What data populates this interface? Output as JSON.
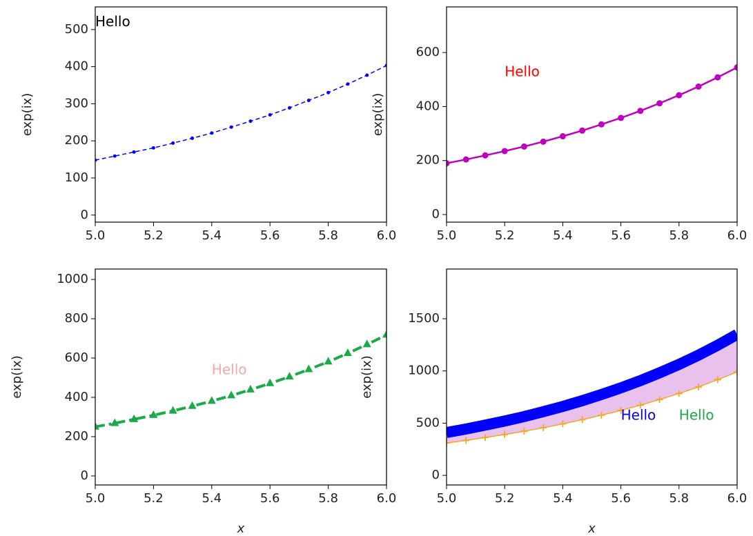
{
  "chart_data": [
    {
      "type": "line",
      "xlim": [
        5,
        6
      ],
      "ylim": [
        -19,
        561
      ],
      "xticks": [
        {
          "value": 5,
          "label": "5.0"
        },
        5.2,
        5.4,
        5.6,
        5.8,
        {
          "value": 6,
          "label": "6.0"
        }
      ],
      "yticks": [
        0,
        100,
        200,
        300,
        400,
        500
      ],
      "ylabel": "exp(ix)",
      "x": [
        5,
        5.067,
        5.133,
        5.2,
        5.267,
        5.333,
        5.4,
        5.467,
        5.533,
        5.6,
        5.667,
        5.733,
        5.8,
        5.867,
        5.933,
        6
      ],
      "series": [
        {
          "color": "#0000ff",
          "linestyle": "dashed",
          "marker": "dot",
          "linewidth": 1.5,
          "values": [
            148,
            159,
            170,
            181,
            194,
            207,
            221,
            237,
            253,
            270,
            289,
            309,
            330,
            353,
            377,
            403
          ]
        }
      ],
      "annotations": [
        {
          "text": "Hello",
          "x": 5,
          "y": 519,
          "color": "#000000"
        }
      ]
    },
    {
      "type": "line",
      "xlim": [
        5,
        6
      ],
      "ylim": [
        -28,
        769
      ],
      "xticks": [
        {
          "value": 5,
          "label": "5.0"
        },
        5.2,
        5.4,
        5.6,
        5.8,
        {
          "value": 6,
          "label": "6.0"
        }
      ],
      "yticks": [
        0,
        200,
        400,
        600
      ],
      "ylabel": "exp(ix)",
      "x": [
        5,
        5.067,
        5.133,
        5.2,
        5.267,
        5.333,
        5.4,
        5.467,
        5.533,
        5.6,
        5.667,
        5.733,
        5.8,
        5.867,
        5.933,
        6
      ],
      "series": [
        {
          "color": "#bf00bf",
          "linestyle": "solid",
          "marker": "circle",
          "linewidth": 2.5,
          "values": [
            190,
            204,
            219,
            235,
            252,
            270,
            290,
            311,
            334,
            358,
            384,
            412,
            442,
            474,
            508,
            545
          ]
        }
      ],
      "annotations": [
        {
          "text": "Hello",
          "x": 5.2,
          "y": 526,
          "color": "#ff0000"
        }
      ]
    },
    {
      "type": "line",
      "xlim": [
        5,
        6
      ],
      "ylim": [
        -46,
        1053
      ],
      "xticks": [
        {
          "value": 5,
          "label": "5.0"
        },
        5.2,
        5.4,
        5.6,
        5.8,
        {
          "value": 6,
          "label": "6.0"
        }
      ],
      "yticks": [
        0,
        200,
        400,
        600,
        800,
        1000
      ],
      "ylabel": "exp(ix)",
      "xlabel": "x",
      "x": [
        5,
        5.067,
        5.133,
        5.2,
        5.267,
        5.333,
        5.4,
        5.467,
        5.533,
        5.6,
        5.667,
        5.733,
        5.8,
        5.867,
        5.933,
        6
      ],
      "series": [
        {
          "color": "#1aaa48",
          "linestyle": "dashdot",
          "marker": "triangle",
          "linewidth": 4,
          "values": [
            250,
            268,
            288,
            309,
            331,
            355,
            381,
            409,
            439,
            471,
            505,
            542,
            581,
            624,
            669,
            718
          ]
        }
      ],
      "annotations": [
        {
          "text": "Hello",
          "x": 5.4,
          "y": 537,
          "color": "#f4a9a8"
        }
      ]
    },
    {
      "type": "line",
      "xlim": [
        5,
        6
      ],
      "ylim": [
        -92,
        1976
      ],
      "xticks": [
        {
          "value": 5,
          "label": "5.0"
        },
        5.2,
        5.4,
        5.6,
        5.8,
        {
          "value": 6,
          "label": "6.0"
        }
      ],
      "yticks": [
        0,
        500,
        1000,
        1500
      ],
      "ylabel": "exp(ix)",
      "xlabel": "x",
      "x": [
        5,
        5.067,
        5.133,
        5.2,
        5.267,
        5.333,
        5.4,
        5.467,
        5.533,
        5.6,
        5.667,
        5.733,
        5.8,
        5.867,
        5.933,
        6
      ],
      "fill_between": {
        "color": "#e8c2ec"
      },
      "series": [
        {
          "color": "#0000ff",
          "linestyle": "solid",
          "marker": "none",
          "linewidth": 16,
          "values": [
            410,
            444,
            481,
            520,
            563,
            610,
            660,
            715,
            774,
            838,
            907,
            982,
            1063,
            1151,
            1246,
            1350
          ]
        },
        {
          "color": "#f5a623",
          "linestyle": "solid",
          "marker": "plus",
          "linewidth": 1.5,
          "values": [
            310,
            335,
            362,
            391,
            422,
            456,
            493,
            533,
            576,
            622,
            672,
            726,
            784,
            847,
            916,
            990
          ]
        }
      ],
      "annotations": [
        {
          "text": "Hello",
          "x": 5.6,
          "y": 570,
          "color": "#0000ff"
        },
        {
          "text": "Hello",
          "x": 5.8,
          "y": 570,
          "color": "#1aaa48"
        }
      ]
    }
  ]
}
